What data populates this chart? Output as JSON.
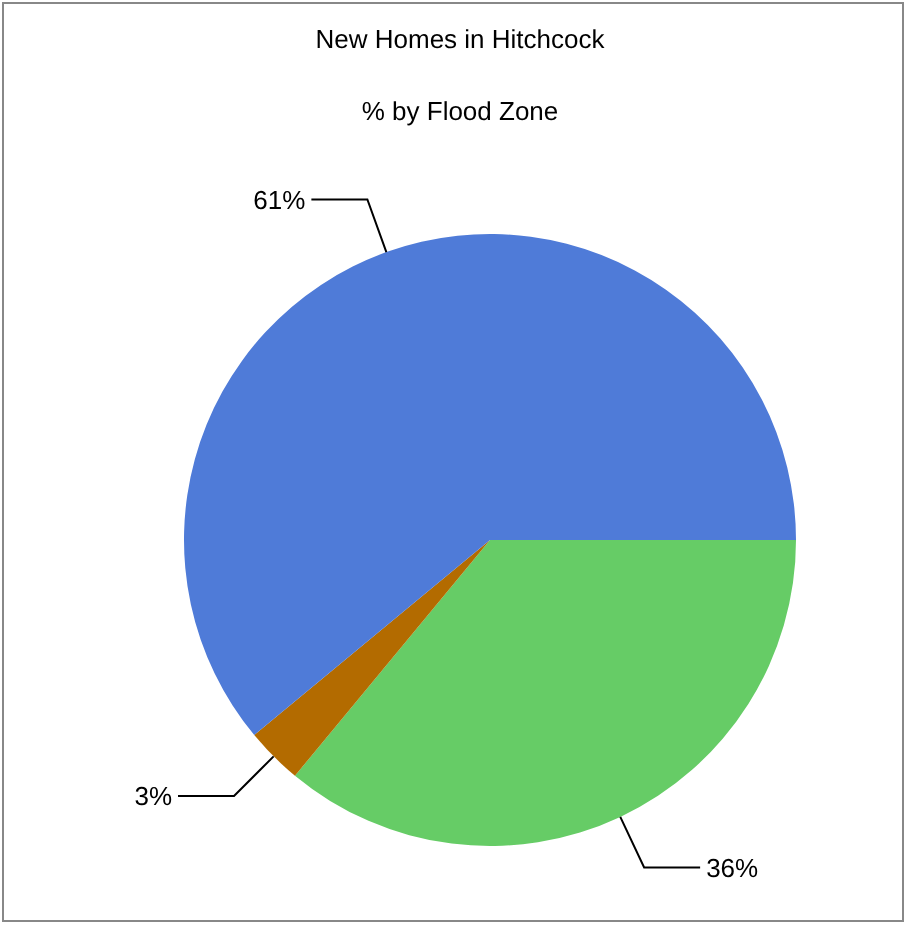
{
  "chart_data": {
    "type": "pie",
    "title": "New Homes in Hitchcock",
    "subtitle": "% by Flood Zone",
    "categories": [
      null,
      null,
      null
    ],
    "values": [
      36,
      3,
      61
    ],
    "colors": [
      "#66cc66",
      "#b36b00",
      "#4f7bd8"
    ],
    "value_labels": [
      "36%",
      "3%",
      "61%"
    ]
  }
}
